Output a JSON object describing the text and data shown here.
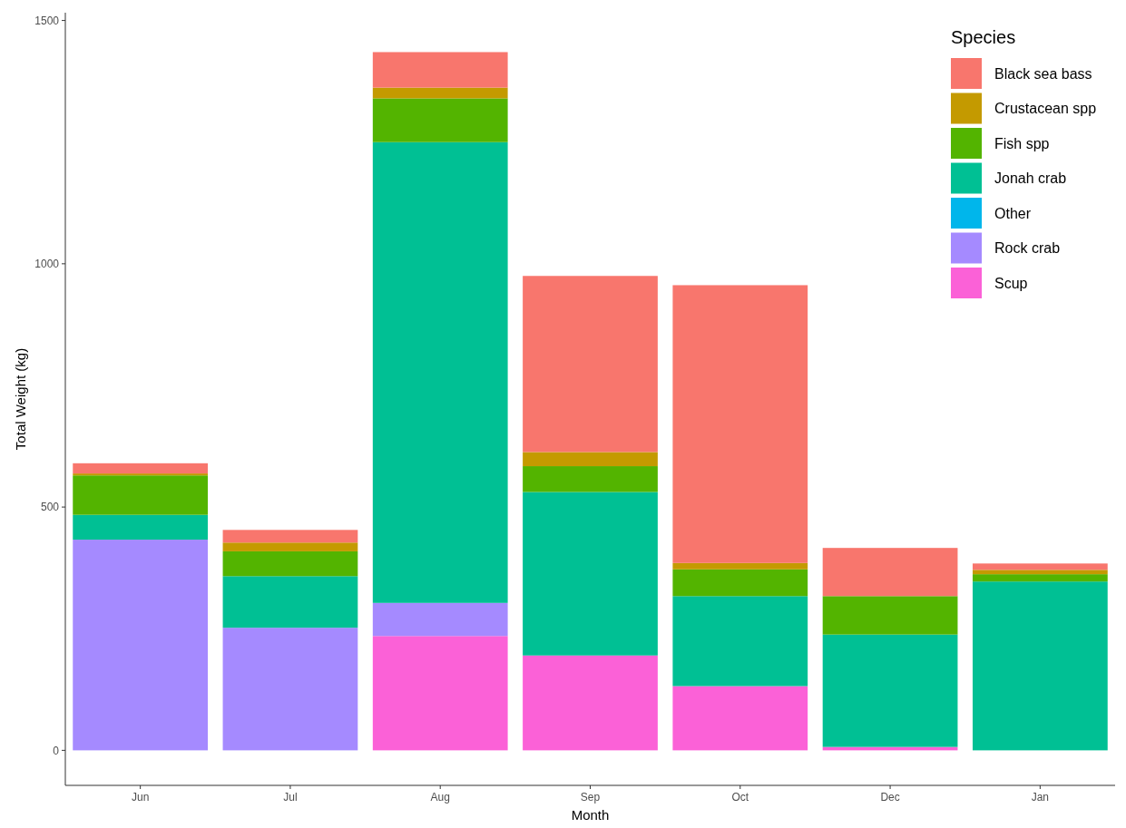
{
  "chart_data": {
    "type": "bar",
    "stacked": true,
    "xlabel": "Month",
    "ylabel": "Total Weight (kg)",
    "legend_title": "Species",
    "legend": "top right",
    "grid": false,
    "categories": [
      "Jun",
      "Jul",
      "Aug",
      "Sep",
      "Oct",
      "Dec",
      "Jan"
    ],
    "ylim": [
      -72,
      1516
    ],
    "yticks": [
      0,
      500,
      1000,
      1500
    ],
    "series": [
      {
        "name": "Scup",
        "color": "#fb61d7",
        "values": [
          0,
          0,
          235,
          195,
          132,
          7,
          0
        ]
      },
      {
        "name": "Rock crab",
        "color": "#a58aff",
        "values": [
          433,
          252,
          68,
          0,
          0,
          0,
          0
        ]
      },
      {
        "name": "Other",
        "color": "#00b6eb",
        "values": [
          0,
          0,
          0,
          0,
          0,
          0,
          0
        ]
      },
      {
        "name": "Jonah crab",
        "color": "#00c094",
        "values": [
          51,
          106,
          947,
          336,
          185,
          231,
          347
        ]
      },
      {
        "name": "Fish spp",
        "color": "#53b400",
        "values": [
          81,
          51,
          90,
          53,
          55,
          79,
          15
        ]
      },
      {
        "name": "Crustacean spp",
        "color": "#c49a00",
        "values": [
          4,
          18,
          22,
          29,
          13,
          0,
          9
        ]
      },
      {
        "name": "Black sea bass",
        "color": "#f8766d",
        "values": [
          21,
          26,
          73,
          362,
          571,
          99,
          13
        ]
      }
    ]
  }
}
